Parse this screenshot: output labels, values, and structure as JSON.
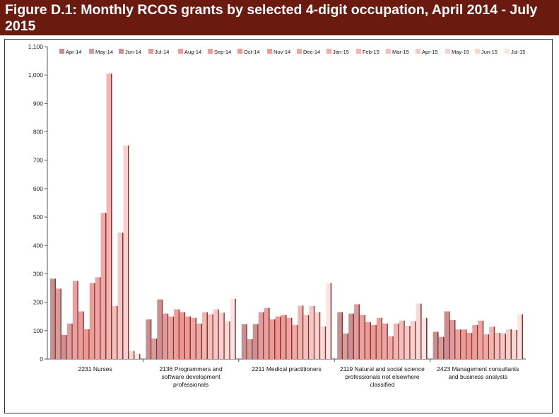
{
  "header": {
    "title": "Figure D.1: Monthly RCOS grants by selected 4-digit occupation, April 2014 - July 2015"
  },
  "colors": {
    "header_bg": "#6b1a10",
    "series": [
      "#c98f8f",
      "#d89a9a",
      "#cf8f90",
      "#e39a9a",
      "#ee9f9d",
      "#f09a96",
      "#f39590",
      "#f29a94",
      "#f2a2a0",
      "#f3a8a6",
      "#f5b3b0",
      "#f6bebb",
      "#f8c6c4",
      "#f9d0ce",
      "#fad8d6",
      "#fde3e2"
    ]
  },
  "chart_data": {
    "type": "bar",
    "title": "Figure D.1: Monthly RCOS grants by selected 4-digit occupation, April 2014 - July 2015",
    "xlabel": "",
    "ylabel": "",
    "ylim": [
      0,
      1100
    ],
    "yticks": [
      "0",
      "100",
      "200",
      "300",
      "400",
      "500",
      "600",
      "700",
      "800",
      "900",
      "1,000",
      "1,100"
    ],
    "ytick_values": [
      0,
      100,
      200,
      300,
      400,
      500,
      600,
      700,
      800,
      900,
      1000,
      1100
    ],
    "legend_position": "top",
    "categories": [
      [
        "2231 Nurses"
      ],
      [
        "2136 Programmers and",
        "software development",
        "professionals"
      ],
      [
        "2211 Medical practitioners"
      ],
      [
        "2119 Natural and social science",
        "professionals not elsewhere",
        "classified"
      ],
      [
        "2423 Management consultants",
        "and business analysts"
      ]
    ],
    "series": [
      {
        "name": "Apr-14",
        "values": [
          283,
          140,
          123,
          165,
          96
        ]
      },
      {
        "name": "May-14",
        "values": [
          248,
          72,
          70,
          90,
          78
        ]
      },
      {
        "name": "Jun-14",
        "values": [
          85,
          210,
          123,
          160,
          168
        ]
      },
      {
        "name": "Jul-14",
        "values": [
          125,
          160,
          165,
          193,
          137
        ]
      },
      {
        "name": "Aug-14",
        "values": [
          275,
          150,
          180,
          155,
          104
        ]
      },
      {
        "name": "Sep-14",
        "values": [
          168,
          175,
          140,
          130,
          104
        ]
      },
      {
        "name": "Oct-14",
        "values": [
          105,
          165,
          150,
          120,
          92
        ]
      },
      {
        "name": "Nov-14",
        "values": [
          268,
          150,
          155,
          145,
          120
        ]
      },
      {
        "name": "Dec-14",
        "values": [
          288,
          145,
          145,
          125,
          135
        ]
      },
      {
        "name": "Jan-15",
        "values": [
          515,
          125,
          120,
          80,
          87
        ]
      },
      {
        "name": "Feb-15",
        "values": [
          1005,
          165,
          188,
          125,
          114
        ]
      },
      {
        "name": "Mar-15",
        "values": [
          187,
          158,
          155,
          135,
          92
        ]
      },
      {
        "name": "Apr-15",
        "values": [
          445,
          175,
          187,
          117,
          90
        ]
      },
      {
        "name": "May-15",
        "values": [
          752,
          163,
          165,
          133,
          105
        ]
      },
      {
        "name": "Jun-15",
        "values": [
          28,
          133,
          115,
          195,
          102
        ]
      },
      {
        "name": "Jul-15",
        "values": [
          18,
          212,
          268,
          145,
          158
        ]
      }
    ]
  }
}
